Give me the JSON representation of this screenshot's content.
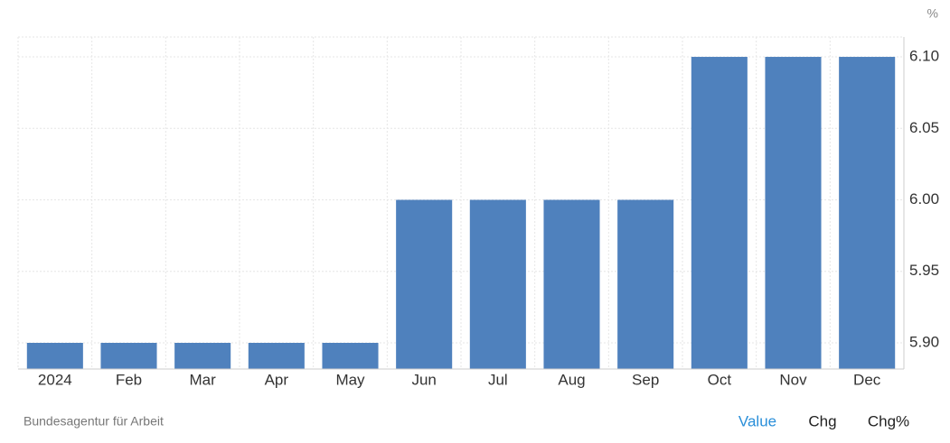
{
  "chart_data": {
    "type": "bar",
    "unit": "%",
    "categories": [
      "2024",
      "Feb",
      "Mar",
      "Apr",
      "May",
      "Jun",
      "Jul",
      "Aug",
      "Sep",
      "Oct",
      "Nov",
      "Dec"
    ],
    "values": [
      5.9,
      5.9,
      5.9,
      5.9,
      5.9,
      6.0,
      6.0,
      6.0,
      6.0,
      6.1,
      6.1,
      6.1
    ],
    "color": "#4f81bd",
    "ylim": [
      5.8817,
      6.1139
    ],
    "yticks": [
      {
        "value": 5.9,
        "label": "5.90"
      },
      {
        "value": 5.95,
        "label": "5.95"
      },
      {
        "value": 6.0,
        "label": "6.00"
      },
      {
        "value": 6.05,
        "label": "6.05"
      },
      {
        "value": 6.1,
        "label": "6.10"
      }
    ],
    "grid": true,
    "source": "Bundesagentur für Arbeit",
    "buttons": [
      "Value",
      "Chg",
      "Chg%"
    ]
  }
}
